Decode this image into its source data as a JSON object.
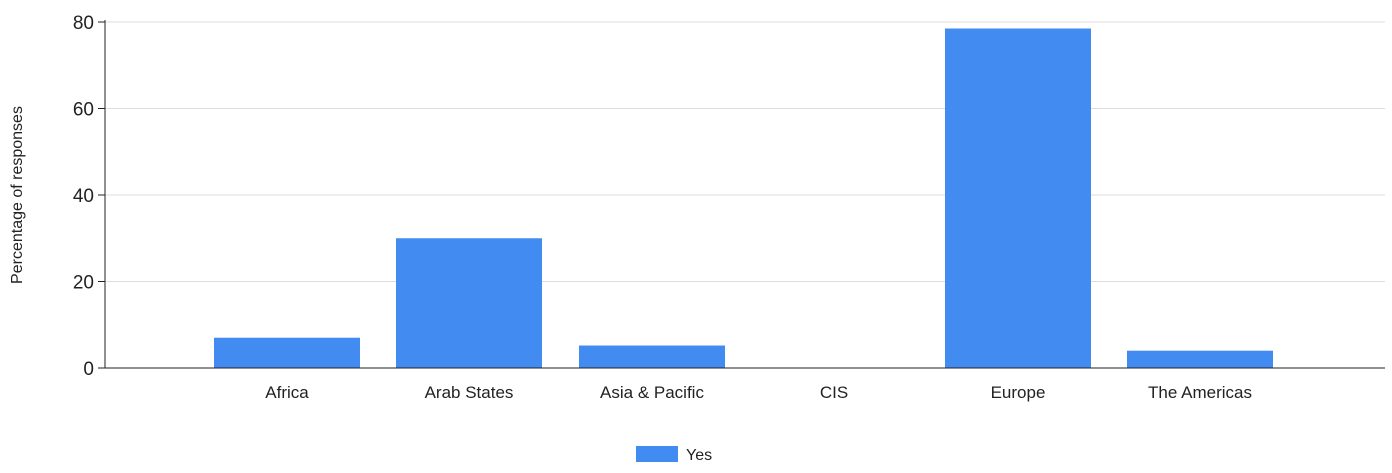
{
  "chart_data": {
    "type": "bar",
    "categories": [
      "Africa",
      "Arab States",
      "Asia & Pacific",
      "CIS",
      "Europe",
      "The Americas"
    ],
    "series": [
      {
        "name": "Yes",
        "values": [
          7,
          30,
          5.2,
          0,
          78.5,
          4
        ]
      }
    ],
    "title": "",
    "xlabel": "",
    "ylabel": "Percentage of responses",
    "ylim": [
      0,
      80
    ],
    "yticks": [
      "0",
      "20",
      "40",
      "60",
      "80"
    ],
    "grid": true,
    "legend_position": "bottom-center",
    "colors": {
      "bar": "#428bf0",
      "grid": "#dddddd",
      "axis": "#222222"
    }
  }
}
